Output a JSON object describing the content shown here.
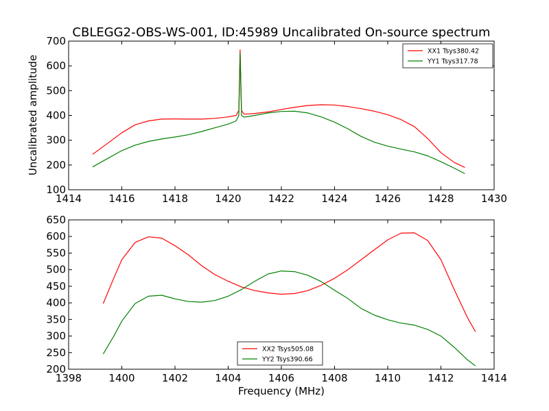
{
  "figure": {
    "title": "CBLEGG2-OBS-WS-001, ID:45989 Uncalibrated On-source spectrum"
  },
  "chart_data": [
    {
      "type": "line",
      "ylabel": "Uncalibrated amplitude",
      "xlabel": "",
      "xlim": [
        1414,
        1430
      ],
      "ylim": [
        100,
        700
      ],
      "xticks": [
        "1414",
        "1416",
        "1418",
        "1420",
        "1422",
        "1424",
        "1426",
        "1428",
        "1430"
      ],
      "yticks": [
        "100",
        "200",
        "300",
        "400",
        "500",
        "600",
        "700"
      ],
      "legend_placement": "top-right",
      "grid": false,
      "series": [
        {
          "name": "XX1 Tsys380.42",
          "color": "#ff0000",
          "points": [
            [
              1414.9,
              243
            ],
            [
              1415.5,
              290
            ],
            [
              1416.0,
              330
            ],
            [
              1416.5,
              362
            ],
            [
              1417.0,
              378
            ],
            [
              1417.5,
              385
            ],
            [
              1418.0,
              386
            ],
            [
              1418.5,
              385
            ],
            [
              1419.0,
              385
            ],
            [
              1419.5,
              388
            ],
            [
              1420.0,
              394
            ],
            [
              1420.3,
              400
            ],
            [
              1420.4,
              420
            ],
            [
              1420.45,
              665
            ],
            [
              1420.5,
              420
            ],
            [
              1420.6,
              405
            ],
            [
              1421.0,
              408
            ],
            [
              1421.5,
              414
            ],
            [
              1422.0,
              424
            ],
            [
              1422.5,
              433
            ],
            [
              1423.0,
              440
            ],
            [
              1423.5,
              443
            ],
            [
              1424.0,
              442
            ],
            [
              1424.5,
              436
            ],
            [
              1425.0,
              427
            ],
            [
              1425.5,
              417
            ],
            [
              1426.0,
              403
            ],
            [
              1426.5,
              383
            ],
            [
              1427.0,
              355
            ],
            [
              1427.5,
              307
            ],
            [
              1428.0,
              250
            ],
            [
              1428.5,
              210
            ],
            [
              1428.9,
              190
            ]
          ]
        },
        {
          "name": "YY1 Tsys317.78",
          "color": "#008000",
          "points": [
            [
              1414.9,
              192
            ],
            [
              1415.5,
              228
            ],
            [
              1416.0,
              258
            ],
            [
              1416.5,
              280
            ],
            [
              1417.0,
              295
            ],
            [
              1417.5,
              305
            ],
            [
              1418.0,
              313
            ],
            [
              1418.5,
              322
            ],
            [
              1419.0,
              335
            ],
            [
              1419.5,
              350
            ],
            [
              1420.0,
              365
            ],
            [
              1420.3,
              378
            ],
            [
              1420.4,
              400
            ],
            [
              1420.45,
              650
            ],
            [
              1420.5,
              400
            ],
            [
              1420.6,
              393
            ],
            [
              1421.0,
              400
            ],
            [
              1421.5,
              410
            ],
            [
              1422.0,
              416
            ],
            [
              1422.5,
              417
            ],
            [
              1423.0,
              410
            ],
            [
              1423.5,
              394
            ],
            [
              1424.0,
              373
            ],
            [
              1424.5,
              346
            ],
            [
              1425.0,
              315
            ],
            [
              1425.5,
              292
            ],
            [
              1426.0,
              276
            ],
            [
              1426.5,
              264
            ],
            [
              1427.0,
              253
            ],
            [
              1427.5,
              237
            ],
            [
              1428.0,
              213
            ],
            [
              1428.5,
              187
            ],
            [
              1428.9,
              165
            ]
          ]
        }
      ]
    },
    {
      "type": "line",
      "ylabel": "",
      "xlabel": "Frequency (MHz)",
      "xlim": [
        1398,
        1414
      ],
      "ylim": [
        200,
        650
      ],
      "xticks": [
        "1398",
        "1400",
        "1402",
        "1404",
        "1406",
        "1408",
        "1410",
        "1412",
        "1414"
      ],
      "yticks": [
        "200",
        "250",
        "300",
        "350",
        "400",
        "450",
        "500",
        "550",
        "600",
        "650"
      ],
      "legend_placement": "lower-center",
      "grid": false,
      "series": [
        {
          "name": "XX2 Tsys505.08",
          "color": "#ff0000",
          "points": [
            [
              1399.3,
              398
            ],
            [
              1399.7,
              475
            ],
            [
              1400.0,
              530
            ],
            [
              1400.5,
              582
            ],
            [
              1401.0,
              599
            ],
            [
              1401.5,
              595
            ],
            [
              1402.0,
              572
            ],
            [
              1402.5,
              545
            ],
            [
              1403.0,
              512
            ],
            [
              1403.5,
              485
            ],
            [
              1404.0,
              465
            ],
            [
              1404.5,
              448
            ],
            [
              1405.0,
              437
            ],
            [
              1405.5,
              430
            ],
            [
              1406.0,
              426
            ],
            [
              1406.5,
              428
            ],
            [
              1407.0,
              437
            ],
            [
              1407.5,
              453
            ],
            [
              1408.0,
              474
            ],
            [
              1408.5,
              500
            ],
            [
              1409.0,
              530
            ],
            [
              1409.5,
              560
            ],
            [
              1410.0,
              590
            ],
            [
              1410.5,
              610
            ],
            [
              1411.0,
              611
            ],
            [
              1411.5,
              588
            ],
            [
              1412.0,
              530
            ],
            [
              1412.5,
              440
            ],
            [
              1413.0,
              355
            ],
            [
              1413.3,
              313
            ]
          ]
        },
        {
          "name": "YY2 Tsys390.66",
          "color": "#008000",
          "points": [
            [
              1399.3,
              246
            ],
            [
              1399.7,
              300
            ],
            [
              1400.0,
              345
            ],
            [
              1400.5,
              398
            ],
            [
              1401.0,
              420
            ],
            [
              1401.5,
              423
            ],
            [
              1402.0,
              412
            ],
            [
              1402.5,
              404
            ],
            [
              1403.0,
              402
            ],
            [
              1403.5,
              407
            ],
            [
              1404.0,
              420
            ],
            [
              1404.5,
              440
            ],
            [
              1405.0,
              465
            ],
            [
              1405.5,
              487
            ],
            [
              1406.0,
              496
            ],
            [
              1406.5,
              494
            ],
            [
              1407.0,
              483
            ],
            [
              1407.5,
              464
            ],
            [
              1408.0,
              438
            ],
            [
              1408.5,
              413
            ],
            [
              1409.0,
              383
            ],
            [
              1409.5,
              363
            ],
            [
              1410.0,
              349
            ],
            [
              1410.5,
              339
            ],
            [
              1411.0,
              333
            ],
            [
              1411.5,
              320
            ],
            [
              1412.0,
              300
            ],
            [
              1412.5,
              266
            ],
            [
              1413.0,
              228
            ],
            [
              1413.3,
              210
            ]
          ]
        }
      ]
    }
  ]
}
